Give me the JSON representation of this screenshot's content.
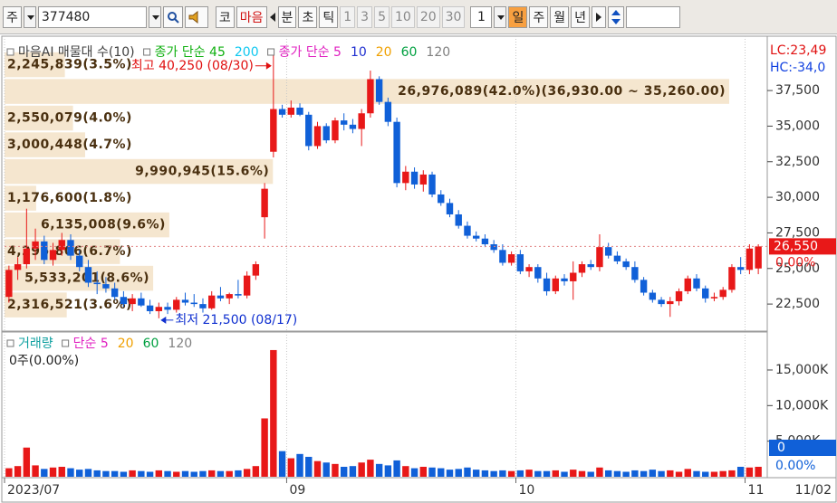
{
  "toolbar": {
    "items": [
      "주",
      "377480",
      "코",
      "마음",
      "분",
      "초",
      "틱",
      "1",
      "3",
      "5",
      "10",
      "20",
      "30",
      "1",
      "일",
      "주",
      "월",
      "년"
    ]
  },
  "chart_data": [
    {
      "type": "candlestick",
      "legend": [
        {
          "name": "마음AI 매물대 수(10)",
          "color": "#404040"
        },
        {
          "name": "종가 단순 45",
          "color": "#10b010"
        },
        {
          "name": "200",
          "color": "#10c8f0"
        },
        {
          "name": "종가 단순 5",
          "color": "#e020c0"
        },
        {
          "name": "10",
          "color": "#2030d0"
        },
        {
          "name": "20",
          "color": "#f0a000"
        },
        {
          "name": "60",
          "color": "#00a040"
        },
        {
          "name": "120",
          "color": "#808080"
        }
      ],
      "side_labels": [
        {
          "text": "LC:23,49",
          "color": "#e01010"
        },
        {
          "text": "HC:-34,0",
          "color": "#1040e0"
        }
      ],
      "last_price_label": "26,550",
      "last_change_label": "0.00%",
      "up_color": "#e81818",
      "down_color": "#1060d8",
      "ylim": [
        20600,
        41000
      ],
      "yticks": [
        {
          "value": 37500,
          "label": "37,500"
        },
        {
          "value": 35000,
          "label": "35,000"
        },
        {
          "value": 32500,
          "label": "32,500"
        },
        {
          "value": 30000,
          "label": "30,000"
        },
        {
          "value": 27500,
          "label": "27,500"
        },
        {
          "value": 25000,
          "label": "25,000"
        },
        {
          "value": 22500,
          "label": "22,500"
        }
      ],
      "annotations": [
        {
          "label": "최고 40,250 (08/30)",
          "value": 40250,
          "color": "#e01010"
        },
        {
          "label": "최저 21,500 (08/17)",
          "value": 21500,
          "color": "#1030d0"
        }
      ],
      "profile": [
        {
          "label": "2,245,839(3.5%)",
          "volume": 2245839
        },
        {
          "label": "26,976,089(42.0%)(36,930.00 ~ 35,260.00)",
          "volume": 26976089
        },
        {
          "label": "2,550,079(4.0%)",
          "volume": 2550079
        },
        {
          "label": "3,000,448(4.7%)",
          "volume": 3000448
        },
        {
          "label": "9,990,945(15.6%)",
          "volume": 9990945
        },
        {
          "label": "1,176,600(1.8%)",
          "volume": 1176600
        },
        {
          "label": "6,135,008(9.6%)",
          "volume": 6135008
        },
        {
          "label": "4,295,806(6.7%)",
          "volume": 4295806
        },
        {
          "label": "5,533,201(8.6%)",
          "volume": 5533201
        },
        {
          "label": "2,316,521(3.6%)",
          "volume": 2316521
        }
      ],
      "categories": [
        "2023/07",
        null,
        null,
        null,
        null,
        null,
        null,
        null,
        null,
        null,
        null,
        null,
        null,
        null,
        null,
        null,
        null,
        null,
        null,
        null,
        null,
        null,
        null,
        null,
        null,
        null,
        null,
        null,
        null,
        null,
        null,
        null,
        "09",
        null,
        null,
        null,
        null,
        null,
        null,
        null,
        null,
        null,
        null,
        null,
        null,
        null,
        null,
        null,
        null,
        null,
        null,
        null,
        null,
        null,
        null,
        null,
        null,
        null,
        "10",
        null,
        null,
        null,
        null,
        null,
        null,
        null,
        null,
        null,
        null,
        null,
        null,
        null,
        null,
        null,
        null,
        null,
        null,
        null,
        null,
        null,
        null,
        null,
        null,
        null,
        "11",
        null
      ],
      "end_label": "11/02",
      "ohlc": [
        [
          23000,
          25200,
          22600,
          24900
        ],
        [
          24900,
          25800,
          24200,
          25300
        ],
        [
          25300,
          29200,
          25000,
          26400
        ],
        [
          26400,
          27800,
          25600,
          26900
        ],
        [
          26900,
          27300,
          25300,
          25600
        ],
        [
          25600,
          26800,
          25200,
          26300
        ],
        [
          26300,
          27500,
          25900,
          27000
        ],
        [
          27000,
          27400,
          25600,
          25900
        ],
        [
          25900,
          26300,
          24800,
          25100
        ],
        [
          25100,
          25600,
          23700,
          24000
        ],
        [
          24000,
          24800,
          23200,
          23900
        ],
        [
          23900,
          24400,
          23300,
          23600
        ],
        [
          23600,
          24000,
          22800,
          23000
        ],
        [
          23000,
          23400,
          22300,
          22500
        ],
        [
          22500,
          23200,
          22000,
          22900
        ],
        [
          22900,
          23300,
          22300,
          22400
        ],
        [
          22400,
          22800,
          21800,
          22000
        ],
        [
          22000,
          22600,
          21500,
          22300
        ],
        [
          22300,
          22600,
          21800,
          22100
        ],
        [
          22100,
          23000,
          21900,
          22800
        ],
        [
          22800,
          23300,
          22400,
          22600
        ],
        [
          22600,
          23200,
          22300,
          22500
        ],
        [
          22500,
          22900,
          21900,
          22200
        ],
        [
          22200,
          23400,
          22100,
          23100
        ],
        [
          23100,
          23700,
          22700,
          22900
        ],
        [
          22900,
          23300,
          22500,
          23200
        ],
        [
          23200,
          24200,
          22900,
          23100
        ],
        [
          23100,
          24800,
          22900,
          24500
        ],
        [
          24500,
          25500,
          24200,
          25300
        ],
        [
          28600,
          31000,
          27100,
          30600
        ],
        [
          33200,
          40250,
          32800,
          36200
        ],
        [
          36200,
          36500,
          35600,
          35800
        ],
        [
          35800,
          36800,
          35600,
          36300
        ],
        [
          36300,
          36600,
          35700,
          35800
        ],
        [
          35800,
          36000,
          33300,
          33600
        ],
        [
          33600,
          35300,
          33400,
          35000
        ],
        [
          35000,
          35200,
          33800,
          34000
        ],
        [
          34000,
          35600,
          33800,
          35400
        ],
        [
          35400,
          35900,
          34700,
          35100
        ],
        [
          35100,
          35500,
          34500,
          34800
        ],
        [
          34800,
          36200,
          33600,
          35900
        ],
        [
          35900,
          38900,
          35600,
          38300
        ],
        [
          38300,
          38500,
          36500,
          36700
        ],
        [
          36700,
          37000,
          35000,
          35300
        ],
        [
          35300,
          35600,
          30700,
          31000
        ],
        [
          31000,
          32200,
          30500,
          31800
        ],
        [
          31800,
          32100,
          30600,
          30900
        ],
        [
          30900,
          31900,
          30400,
          31600
        ],
        [
          31600,
          31800,
          30000,
          30200
        ],
        [
          30200,
          30500,
          29400,
          29600
        ],
        [
          29600,
          29900,
          28600,
          28800
        ],
        [
          28800,
          29100,
          27800,
          28000
        ],
        [
          28000,
          28300,
          27100,
          27300
        ],
        [
          27300,
          27600,
          26900,
          27100
        ],
        [
          27100,
          27400,
          26500,
          26700
        ],
        [
          26700,
          27000,
          26100,
          26300
        ],
        [
          26300,
          26700,
          25200,
          25400
        ],
        [
          25400,
          26200,
          25200,
          26000
        ],
        [
          26000,
          26300,
          24600,
          24800
        ],
        [
          24800,
          25300,
          24400,
          25100
        ],
        [
          25100,
          25300,
          24000,
          24300
        ],
        [
          24300,
          24700,
          23100,
          23400
        ],
        [
          23400,
          24500,
          23200,
          24300
        ],
        [
          24300,
          24600,
          23800,
          24100
        ],
        [
          24100,
          25500,
          22800,
          24700
        ],
        [
          24700,
          25500,
          24400,
          25300
        ],
        [
          25300,
          25600,
          24900,
          25100
        ],
        [
          25100,
          27400,
          24800,
          26500
        ],
        [
          26500,
          26800,
          25700,
          25900
        ],
        [
          25900,
          26200,
          25300,
          25500
        ],
        [
          25500,
          25700,
          24900,
          25100
        ],
        [
          25100,
          25500,
          24000,
          24200
        ],
        [
          24200,
          24400,
          23100,
          23300
        ],
        [
          23300,
          23500,
          22600,
          22800
        ],
        [
          22800,
          23000,
          22300,
          22500
        ],
        [
          22500,
          23000,
          21600,
          22700
        ],
        [
          22700,
          23600,
          22400,
          23400
        ],
        [
          23400,
          24500,
          23200,
          24300
        ],
        [
          24300,
          24600,
          23400,
          23600
        ],
        [
          23600,
          23800,
          22600,
          22900
        ],
        [
          22900,
          23300,
          22700,
          23000
        ],
        [
          23000,
          23700,
          22800,
          23500
        ],
        [
          23500,
          25300,
          23300,
          25100
        ],
        [
          25100,
          25800,
          24600,
          24900
        ],
        [
          24900,
          26700,
          24600,
          26400
        ],
        [
          25000,
          26700,
          24600,
          26550
        ]
      ]
    },
    {
      "type": "bar",
      "legend": [
        {
          "name": "거래량",
          "color": "#10a0a0"
        },
        {
          "name": "단순 5",
          "color": "#e020c0"
        },
        {
          "name": "20",
          "color": "#f0a000"
        },
        {
          "name": "60",
          "color": "#00a040"
        },
        {
          "name": "120",
          "color": "#808080"
        }
      ],
      "status": "0주(0.00%)",
      "last_label": "0",
      "last_change_label": "0.00%",
      "ylim": [
        0,
        19700
      ],
      "yticks": [
        {
          "value": 15000,
          "label": "15,000K"
        },
        {
          "value": 10000,
          "label": "10,000K"
        },
        {
          "value": 5000,
          "label": "5,000K"
        }
      ],
      "values": [
        1200,
        1500,
        4100,
        1600,
        1100,
        1300,
        1400,
        1200,
        1000,
        1100,
        900,
        800,
        800,
        700,
        900,
        800,
        700,
        900,
        800,
        700,
        800,
        700,
        800,
        900,
        800,
        800,
        900,
        1100,
        1500,
        8200,
        17800,
        3600,
        2600,
        3200,
        2800,
        2200,
        2000,
        1800,
        1400,
        1500,
        2000,
        2400,
        1800,
        1600,
        2300,
        1500,
        1200,
        1400,
        1300,
        1200,
        1000,
        1100,
        1300,
        1000,
        900,
        800,
        900,
        800,
        900,
        1000,
        800,
        800,
        900,
        700,
        1000,
        800,
        700,
        1300,
        900,
        800,
        700,
        900,
        800,
        1000,
        800,
        900,
        700,
        1100,
        800,
        700,
        700,
        800,
        900,
        1400,
        1300,
        1400
      ]
    }
  ]
}
